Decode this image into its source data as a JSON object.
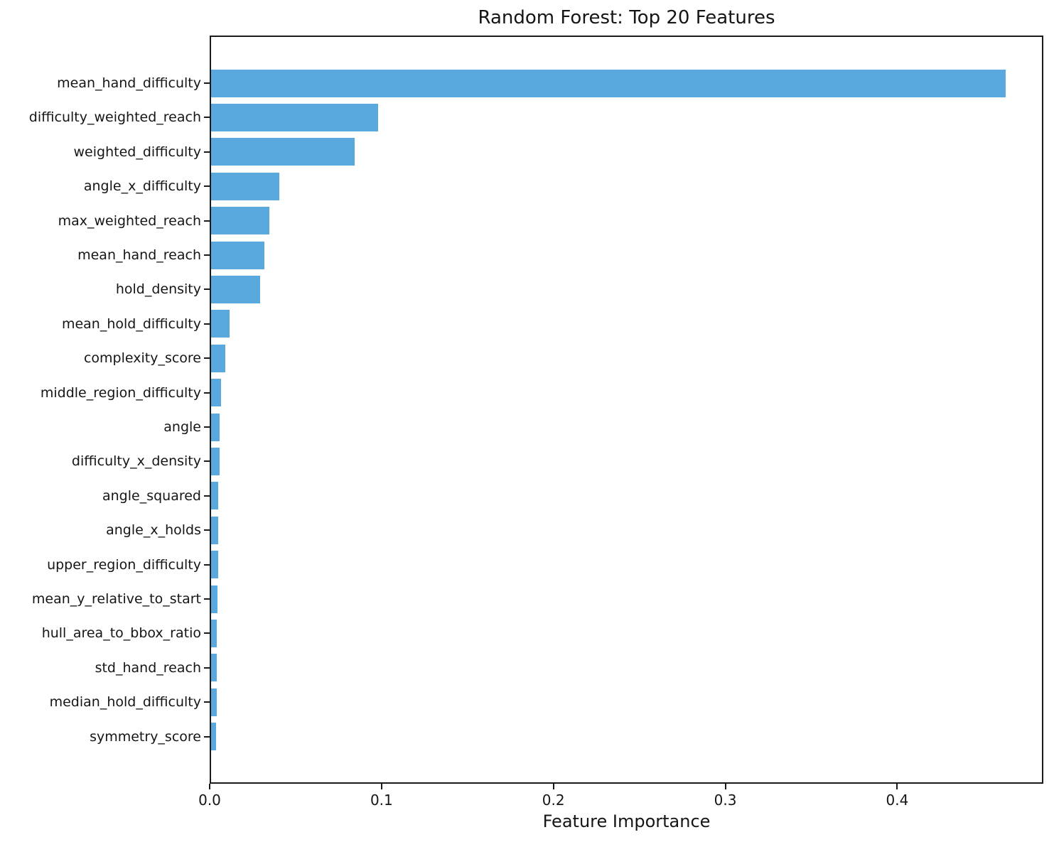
{
  "chart_data": {
    "type": "bar",
    "orientation": "horizontal",
    "title": "Random Forest: Top 20 Features",
    "xlabel": "Feature Importance",
    "ylabel": "",
    "categories": [
      "mean_hand_difficulty",
      "difficulty_weighted_reach",
      "weighted_difficulty",
      "angle_x_difficulty",
      "max_weighted_reach",
      "mean_hand_reach",
      "hold_density",
      "mean_hold_difficulty",
      "complexity_score",
      "middle_region_difficulty",
      "angle",
      "difficulty_x_density",
      "angle_squared",
      "angle_x_holds",
      "upper_region_difficulty",
      "mean_y_relative_to_start",
      "hull_area_to_bbox_ratio",
      "std_hand_reach",
      "median_hold_difficulty",
      "symmetry_score"
    ],
    "values": [
      0.4624,
      0.0972,
      0.0836,
      0.0397,
      0.0339,
      0.031,
      0.0285,
      0.0106,
      0.0083,
      0.0058,
      0.005,
      0.005,
      0.0043,
      0.0043,
      0.0041,
      0.0038,
      0.0034,
      0.0034,
      0.0034,
      0.0031
    ],
    "xlim": [
      0,
      0.485
    ],
    "x_ticks": [
      0.0,
      0.1,
      0.2,
      0.3,
      0.4
    ],
    "x_tick_labels": [
      "0.0",
      "0.1",
      "0.2",
      "0.3",
      "0.4"
    ],
    "bar_color": "#5AA9DE",
    "grid": false,
    "legend_position": "none"
  }
}
